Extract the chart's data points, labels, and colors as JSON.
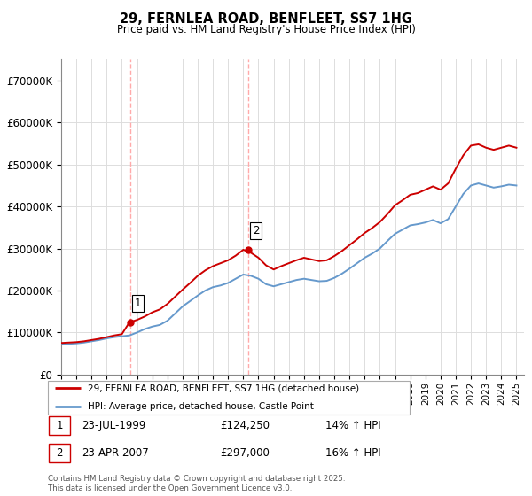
{
  "title": "29, FERNLEA ROAD, BENFLEET, SS7 1HG",
  "subtitle": "Price paid vs. HM Land Registry's House Price Index (HPI)",
  "legend_label_red": "29, FERNLEA ROAD, BENFLEET, SS7 1HG (detached house)",
  "legend_label_blue": "HPI: Average price, detached house, Castle Point",
  "sale1_date": "23-JUL-1999",
  "sale1_price": "£124,250",
  "sale1_hpi": "14% ↑ HPI",
  "sale2_date": "23-APR-2007",
  "sale2_price": "£297,000",
  "sale2_hpi": "16% ↑ HPI",
  "footer": "Contains HM Land Registry data © Crown copyright and database right 2025.\nThis data is licensed under the Open Government Licence v3.0.",
  "ylim": [
    0,
    750000
  ],
  "yticks": [
    0,
    100000,
    200000,
    300000,
    400000,
    500000,
    600000,
    700000
  ],
  "color_red": "#cc0000",
  "color_blue": "#6699cc",
  "color_grid": "#dddddd",
  "color_vline": "#ffaaaa",
  "background": "#ffffff",
  "marker1_year": 1999.55,
  "marker2_year": 2007.31,
  "marker1_price": 124250,
  "marker2_price": 297000,
  "years_hpi": [
    1995.0,
    1995.5,
    1996.0,
    1996.5,
    1997.0,
    1997.5,
    1998.0,
    1998.5,
    1999.0,
    1999.5,
    2000.0,
    2000.5,
    2001.0,
    2001.5,
    2002.0,
    2002.5,
    2003.0,
    2003.5,
    2004.0,
    2004.5,
    2005.0,
    2005.5,
    2006.0,
    2006.5,
    2007.0,
    2007.5,
    2008.0,
    2008.5,
    2009.0,
    2009.5,
    2010.0,
    2010.5,
    2011.0,
    2011.5,
    2012.0,
    2012.5,
    2013.0,
    2013.5,
    2014.0,
    2014.5,
    2015.0,
    2015.5,
    2016.0,
    2016.5,
    2017.0,
    2017.5,
    2018.0,
    2018.5,
    2019.0,
    2019.5,
    2020.0,
    2020.5,
    2021.0,
    2021.5,
    2022.0,
    2022.5,
    2023.0,
    2023.5,
    2024.0,
    2024.5,
    2025.0
  ],
  "hpi_vals": [
    72000,
    73000,
    74000,
    76000,
    79000,
    82000,
    86000,
    89000,
    91000,
    93000,
    100000,
    108000,
    114000,
    118000,
    128000,
    145000,
    162000,
    175000,
    188000,
    200000,
    208000,
    212000,
    218000,
    228000,
    238000,
    235000,
    228000,
    215000,
    210000,
    215000,
    220000,
    225000,
    228000,
    225000,
    222000,
    223000,
    230000,
    240000,
    252000,
    265000,
    278000,
    288000,
    300000,
    318000,
    335000,
    345000,
    355000,
    358000,
    362000,
    368000,
    360000,
    370000,
    400000,
    430000,
    450000,
    455000,
    450000,
    445000,
    448000,
    452000,
    450000
  ],
  "price_vals": [
    75000,
    76000,
    77000,
    79000,
    82000,
    85000,
    89000,
    93000,
    96000,
    124250,
    130000,
    138000,
    148000,
    155000,
    168000,
    185000,
    202000,
    218000,
    235000,
    248000,
    258000,
    265000,
    272000,
    283000,
    297000,
    290000,
    278000,
    260000,
    250000,
    258000,
    265000,
    272000,
    278000,
    274000,
    270000,
    272000,
    282000,
    294000,
    308000,
    322000,
    337000,
    349000,
    363000,
    382000,
    403000,
    415000,
    428000,
    432000,
    440000,
    448000,
    440000,
    455000,
    490000,
    522000,
    545000,
    548000,
    540000,
    535000,
    540000,
    545000,
    540000
  ]
}
